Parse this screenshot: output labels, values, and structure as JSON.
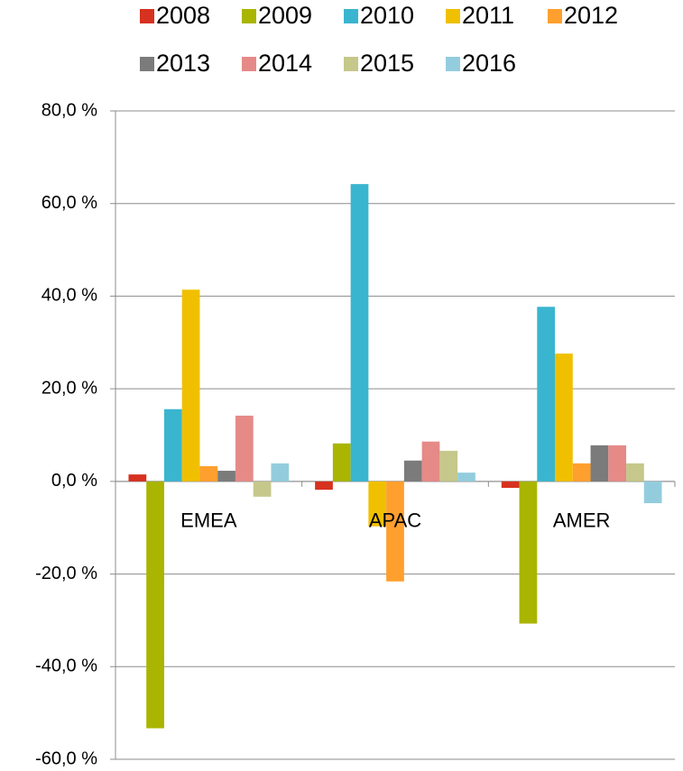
{
  "chart_data": {
    "type": "bar",
    "categories": [
      "EMEA",
      "APAC",
      "AMER"
    ],
    "series": [
      {
        "name": "2008",
        "color": "#d7311f",
        "values": [
          1.5,
          -1.8,
          -1.4
        ]
      },
      {
        "name": "2009",
        "color": "#a9b500",
        "values": [
          -53.3,
          8.2,
          -30.7
        ]
      },
      {
        "name": "2010",
        "color": "#3ab5cf",
        "values": [
          15.6,
          64.2,
          37.7
        ]
      },
      {
        "name": "2011",
        "color": "#f0c000",
        "values": [
          41.4,
          -9.7,
          27.6
        ]
      },
      {
        "name": "2012",
        "color": "#ff9f2e",
        "values": [
          3.3,
          -21.6,
          3.9
        ]
      },
      {
        "name": "2013",
        "color": "#7b7b7b",
        "values": [
          2.3,
          4.5,
          7.8
        ]
      },
      {
        "name": "2014",
        "color": "#e58a87",
        "values": [
          14.2,
          8.6,
          7.8
        ]
      },
      {
        "name": "2015",
        "color": "#c5c88a",
        "values": [
          -3.3,
          6.6,
          3.9
        ]
      },
      {
        "name": "2016",
        "color": "#93cddd",
        "values": [
          3.9,
          1.9,
          -4.7
        ]
      }
    ],
    "ylim": [
      -60,
      80
    ],
    "yticks": [
      {
        "value": -60,
        "label": "-60,0 %"
      },
      {
        "value": -40,
        "label": "-40,0 %"
      },
      {
        "value": -20,
        "label": "-20,0 %"
      },
      {
        "value": 0,
        "label": "0,0 %"
      },
      {
        "value": 20,
        "label": "20,0 %"
      },
      {
        "value": 40,
        "label": "40,0 %"
      },
      {
        "value": 60,
        "label": "60,0 %"
      },
      {
        "value": 80,
        "label": "80,0 %"
      }
    ],
    "grid": true,
    "legend": "top"
  }
}
